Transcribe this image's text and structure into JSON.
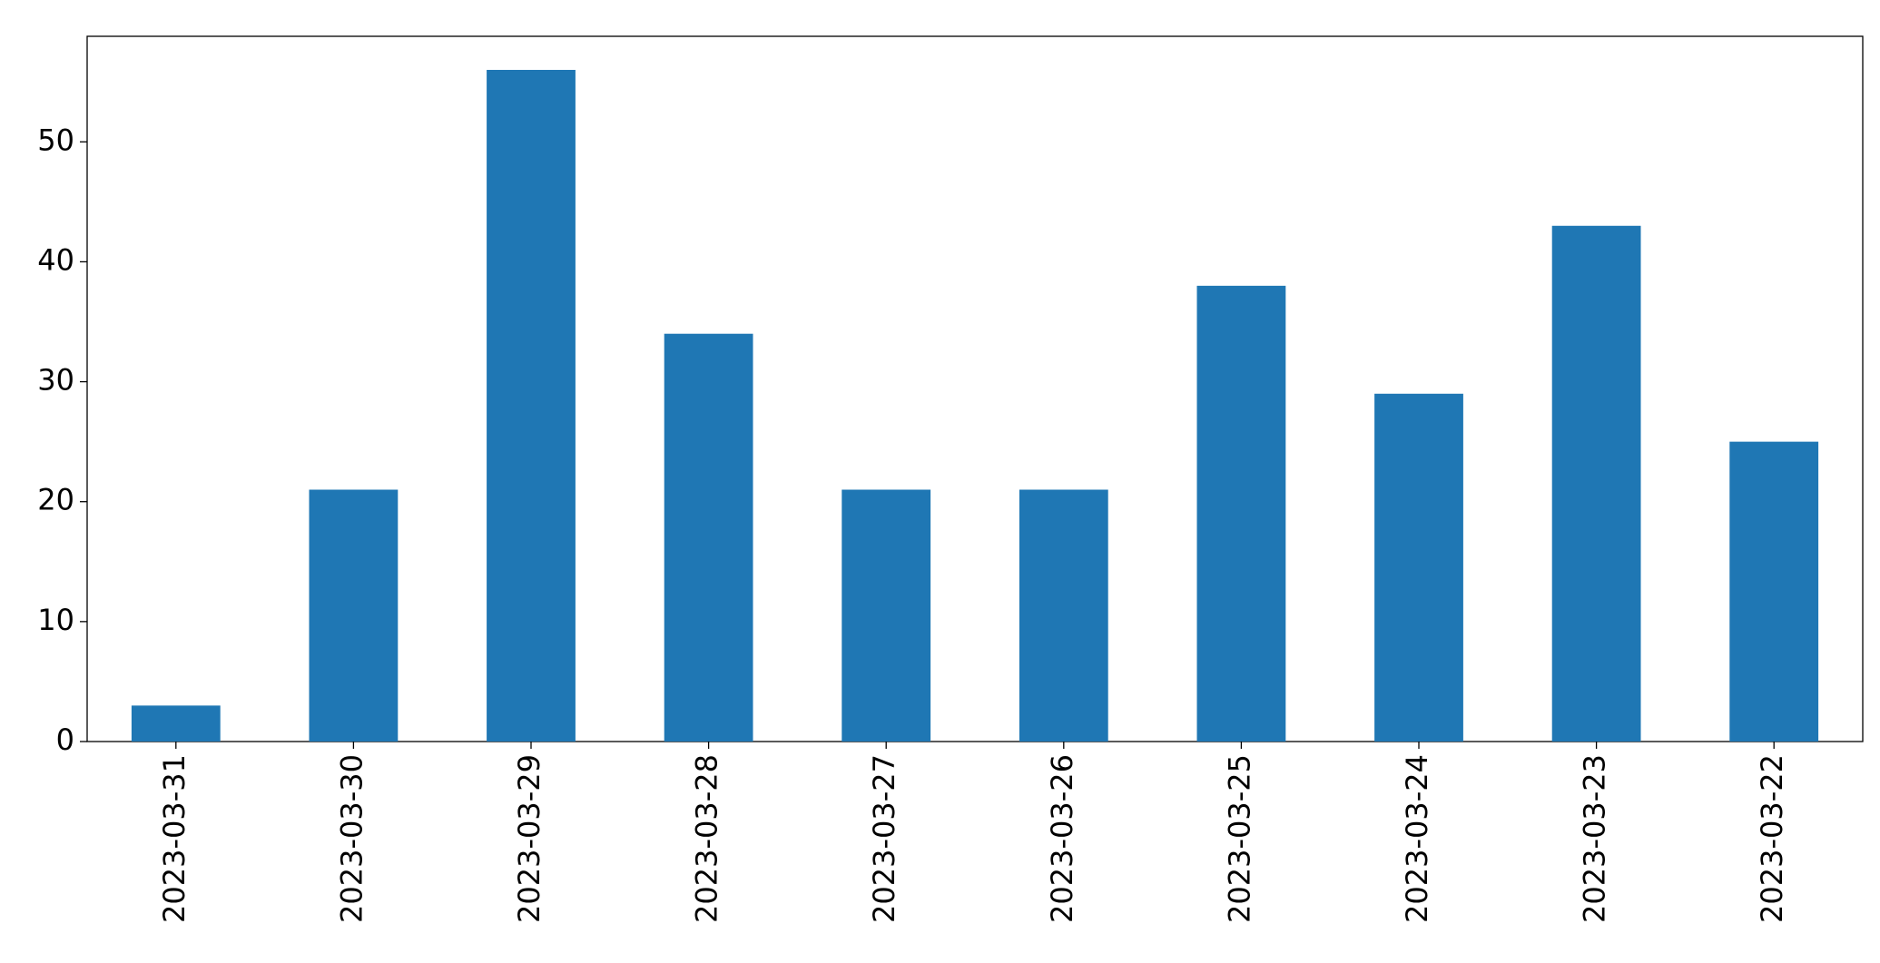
{
  "chart_data": {
    "type": "bar",
    "categories": [
      "2023-03-31",
      "2023-03-30",
      "2023-03-29",
      "2023-03-28",
      "2023-03-27",
      "2023-03-26",
      "2023-03-25",
      "2023-03-24",
      "2023-03-23",
      "2023-03-22"
    ],
    "values": [
      3,
      21,
      56,
      34,
      21,
      21,
      38,
      29,
      43,
      25
    ],
    "color": "#1f77b4",
    "ylim": [
      0,
      58.8
    ],
    "yticks": [
      0,
      10,
      20,
      30,
      40,
      50
    ],
    "grid": false
  }
}
